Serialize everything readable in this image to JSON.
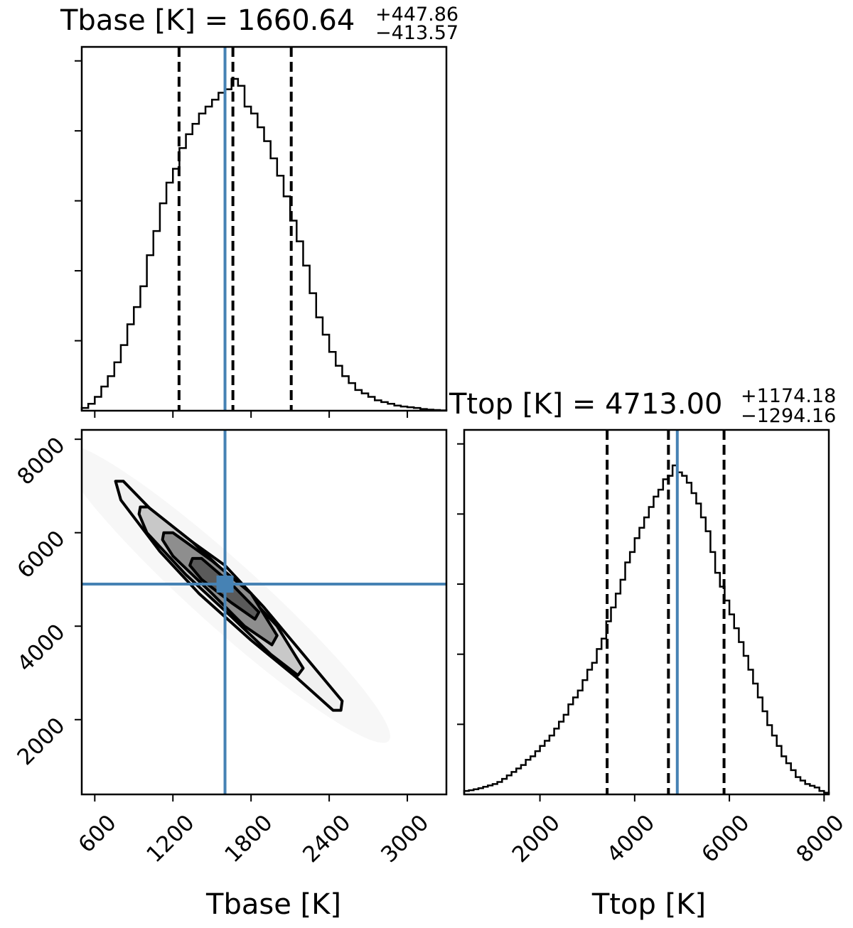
{
  "colors": {
    "truth": "#4682b4",
    "line": "#000000",
    "background": "#ffffff"
  },
  "chart_data": [
    {
      "type": "histogram",
      "panel": "top-left",
      "title": "Tbase [K] = 1660.64",
      "title_plus": "+447.86",
      "title_minus": "−413.57",
      "parameter": "Tbase [K]",
      "xlim": [
        500,
        3300
      ],
      "median": 1660.64,
      "quantiles": [
        1247.07,
        1660.64,
        2108.5
      ],
      "truth": 1600,
      "bins": [
        [
          500,
          0.008
        ],
        [
          550,
          0.02
        ],
        [
          600,
          0.04
        ],
        [
          650,
          0.07
        ],
        [
          700,
          0.1
        ],
        [
          750,
          0.14
        ],
        [
          800,
          0.19
        ],
        [
          850,
          0.25
        ],
        [
          900,
          0.3
        ],
        [
          950,
          0.36
        ],
        [
          1000,
          0.45
        ],
        [
          1050,
          0.52
        ],
        [
          1100,
          0.6
        ],
        [
          1150,
          0.66
        ],
        [
          1200,
          0.7
        ],
        [
          1250,
          0.76
        ],
        [
          1300,
          0.8
        ],
        [
          1350,
          0.83
        ],
        [
          1400,
          0.86
        ],
        [
          1450,
          0.88
        ],
        [
          1500,
          0.9
        ],
        [
          1550,
          0.92
        ],
        [
          1600,
          0.93
        ],
        [
          1650,
          0.96
        ],
        [
          1700,
          0.94
        ],
        [
          1750,
          0.88
        ],
        [
          1800,
          0.86
        ],
        [
          1850,
          0.82
        ],
        [
          1900,
          0.78
        ],
        [
          1950,
          0.73
        ],
        [
          2000,
          0.68
        ],
        [
          2050,
          0.62
        ],
        [
          2100,
          0.55
        ],
        [
          2150,
          0.49
        ],
        [
          2200,
          0.42
        ],
        [
          2250,
          0.34
        ],
        [
          2300,
          0.27
        ],
        [
          2350,
          0.22
        ],
        [
          2400,
          0.17
        ],
        [
          2450,
          0.13
        ],
        [
          2500,
          0.1
        ],
        [
          2550,
          0.08
        ],
        [
          2600,
          0.06
        ],
        [
          2650,
          0.05
        ],
        [
          2700,
          0.04
        ],
        [
          2750,
          0.03
        ],
        [
          2800,
          0.025
        ],
        [
          2850,
          0.02
        ],
        [
          2900,
          0.015
        ],
        [
          2950,
          0.012
        ],
        [
          3000,
          0.01
        ],
        [
          3050,
          0.008
        ],
        [
          3100,
          0.005
        ],
        [
          3150,
          0.003
        ],
        [
          3200,
          0.002
        ],
        [
          3250,
          0.001
        ]
      ]
    },
    {
      "type": "contour",
      "panel": "bottom-left",
      "xlabel": "Tbase [K]",
      "ylabel": "",
      "xlim": [
        500,
        3300
      ],
      "ylim": [
        400,
        8200
      ],
      "xticks": [
        "600",
        "1200",
        "1800",
        "2400",
        "3000"
      ],
      "yticks": [
        "2000",
        "4000",
        "6000",
        "8000"
      ],
      "truth": {
        "x": 1600,
        "y": 4900
      },
      "contours": [
        {
          "level": 1,
          "points": [
            [
              760,
              7100
            ],
            [
              820,
              7100
            ],
            [
              1100,
              6300
            ],
            [
              1600,
              5300
            ],
            [
              1900,
              4400
            ],
            [
              2200,
              3400
            ],
            [
              2500,
              2400
            ],
            [
              2490,
              2200
            ],
            [
              2430,
              2200
            ],
            [
              2150,
              2900
            ],
            [
              1800,
              3700
            ],
            [
              1400,
              4700
            ],
            [
              1100,
              5600
            ],
            [
              800,
              6700
            ]
          ]
        },
        {
          "level": 2,
          "points": [
            [
              950,
              6550
            ],
            [
              1010,
              6550
            ],
            [
              1350,
              5800
            ],
            [
              1700,
              4900
            ],
            [
              2000,
              4000
            ],
            [
              2200,
              3100
            ],
            [
              2160,
              2950
            ],
            [
              1950,
              3400
            ],
            [
              1650,
              4200
            ],
            [
              1300,
              5100
            ],
            [
              1000,
              6000
            ],
            [
              940,
              6400
            ]
          ]
        },
        {
          "level": 3,
          "points": [
            [
              1130,
              6000
            ],
            [
              1200,
              6000
            ],
            [
              1500,
              5400
            ],
            [
              1800,
              4700
            ],
            [
              2000,
              3800
            ],
            [
              1960,
              3600
            ],
            [
              1750,
              4000
            ],
            [
              1500,
              4700
            ],
            [
              1200,
              5500
            ],
            [
              1120,
              5850
            ]
          ]
        },
        {
          "level": 4,
          "points": [
            [
              1350,
              5450
            ],
            [
              1420,
              5450
            ],
            [
              1650,
              4900
            ],
            [
              1860,
              4300
            ],
            [
              1830,
              4150
            ],
            [
              1650,
              4500
            ],
            [
              1420,
              5000
            ],
            [
              1330,
              5300
            ]
          ]
        }
      ]
    },
    {
      "type": "histogram",
      "panel": "bottom-right",
      "title": "Ttop [K] = 4713.00",
      "title_plus": "+1174.18",
      "title_minus": "−1294.16",
      "parameter": "Ttop [K]",
      "xlabel": "Ttop [K]",
      "xlim": [
        400,
        8100
      ],
      "xticks": [
        "2000",
        "4000",
        "6000",
        "8000"
      ],
      "median": 4713.0,
      "quantiles": [
        3418.84,
        4713.0,
        5887.18
      ],
      "truth": 4900,
      "bins": [
        [
          400,
          0.01
        ],
        [
          500,
          0.012
        ],
        [
          600,
          0.015
        ],
        [
          700,
          0.018
        ],
        [
          800,
          0.022
        ],
        [
          900,
          0.026
        ],
        [
          1000,
          0.03
        ],
        [
          1100,
          0.036
        ],
        [
          1200,
          0.045
        ],
        [
          1300,
          0.055
        ],
        [
          1400,
          0.065
        ],
        [
          1500,
          0.075
        ],
        [
          1600,
          0.085
        ],
        [
          1700,
          0.1
        ],
        [
          1800,
          0.11
        ],
        [
          1900,
          0.125
        ],
        [
          2000,
          0.14
        ],
        [
          2100,
          0.155
        ],
        [
          2200,
          0.17
        ],
        [
          2300,
          0.19
        ],
        [
          2400,
          0.21
        ],
        [
          2500,
          0.23
        ],
        [
          2600,
          0.26
        ],
        [
          2700,
          0.28
        ],
        [
          2800,
          0.3
        ],
        [
          2900,
          0.33
        ],
        [
          3000,
          0.36
        ],
        [
          3100,
          0.38
        ],
        [
          3200,
          0.42
        ],
        [
          3300,
          0.45
        ],
        [
          3400,
          0.5
        ],
        [
          3500,
          0.54
        ],
        [
          3600,
          0.58
        ],
        [
          3700,
          0.62
        ],
        [
          3800,
          0.67
        ],
        [
          3900,
          0.7
        ],
        [
          4000,
          0.74
        ],
        [
          4100,
          0.77
        ],
        [
          4200,
          0.8
        ],
        [
          4300,
          0.83
        ],
        [
          4400,
          0.86
        ],
        [
          4500,
          0.88
        ],
        [
          4600,
          0.91
        ],
        [
          4700,
          0.92
        ],
        [
          4800,
          0.95
        ],
        [
          4900,
          0.93
        ],
        [
          5000,
          0.92
        ],
        [
          5100,
          0.9
        ],
        [
          5200,
          0.87
        ],
        [
          5300,
          0.84
        ],
        [
          5400,
          0.8
        ],
        [
          5500,
          0.76
        ],
        [
          5600,
          0.7
        ],
        [
          5700,
          0.64
        ],
        [
          5800,
          0.6
        ],
        [
          5900,
          0.56
        ],
        [
          6000,
          0.52
        ],
        [
          6100,
          0.48
        ],
        [
          6200,
          0.44
        ],
        [
          6300,
          0.4
        ],
        [
          6400,
          0.36
        ],
        [
          6500,
          0.32
        ],
        [
          6600,
          0.28
        ],
        [
          6700,
          0.24
        ],
        [
          6800,
          0.2
        ],
        [
          6900,
          0.17
        ],
        [
          7000,
          0.14
        ],
        [
          7100,
          0.11
        ],
        [
          7200,
          0.09
        ],
        [
          7300,
          0.07
        ],
        [
          7400,
          0.05
        ],
        [
          7500,
          0.04
        ],
        [
          7600,
          0.03
        ],
        [
          7700,
          0.025
        ],
        [
          7800,
          0.02
        ],
        [
          7900,
          0.01
        ],
        [
          8000,
          0.005
        ]
      ]
    }
  ]
}
